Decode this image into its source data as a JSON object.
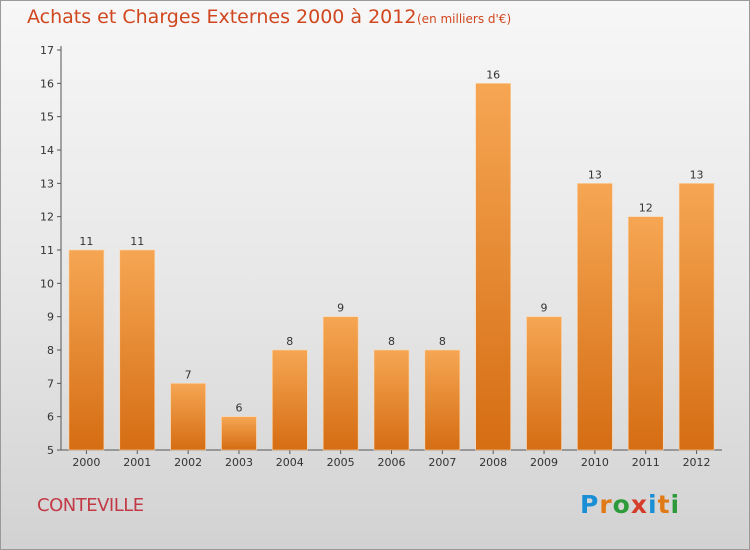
{
  "header": {
    "title": "Achats et Charges Externes 2000 à 2012",
    "unit": "(en milliers d'€)"
  },
  "footer": {
    "commune": "CONTEVILLE",
    "logo_text": "Proxiti",
    "logo_colors": [
      "#1a8fd6",
      "#e07a17",
      "#2e9b3a",
      "#d63c2a",
      "#1a8fd6",
      "#e07a17",
      "#2e9b3a"
    ]
  },
  "colors": {
    "bar_top": "#f6a653",
    "bar_bottom": "#d56d13",
    "title": "#d0471f",
    "commune": "#c23a46"
  },
  "chart_data": {
    "type": "bar",
    "title": "Achats et Charges Externes 2000 à 2012",
    "subtitle": "(en milliers d'€)",
    "xlabel": "",
    "ylabel": "",
    "categories": [
      "2000",
      "2001",
      "2002",
      "2003",
      "2004",
      "2005",
      "2006",
      "2007",
      "2008",
      "2009",
      "2010",
      "2011",
      "2012"
    ],
    "values": [
      11,
      11,
      7,
      6,
      8,
      9,
      8,
      8,
      16,
      9,
      13,
      12,
      13
    ],
    "ylim": [
      5,
      17
    ],
    "yticks": [
      5,
      6,
      7,
      8,
      9,
      10,
      11,
      12,
      13,
      14,
      15,
      16,
      17
    ],
    "grid": false,
    "data_labels": true
  }
}
